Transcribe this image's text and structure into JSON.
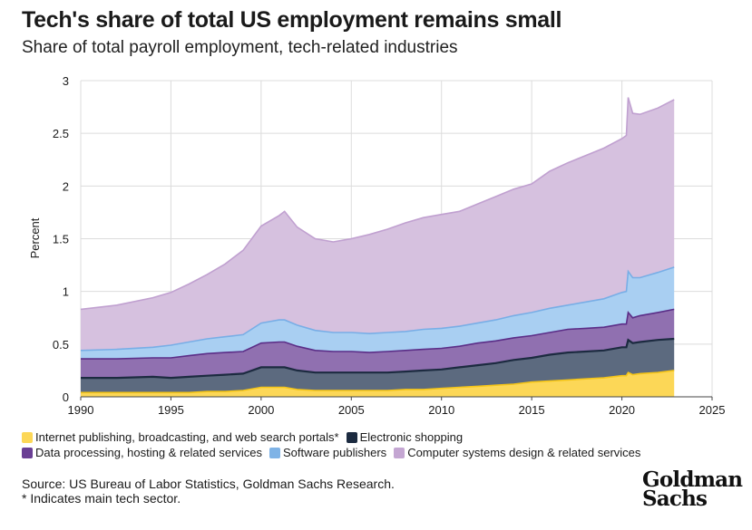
{
  "header": {
    "title": "Tech's share of total US employment remains small",
    "subtitle": "Share of total payroll employment, tech-related industries"
  },
  "chart_data": {
    "type": "area",
    "stacked": true,
    "title": "Tech's share of total US employment remains small",
    "subtitle": "Share of total payroll employment, tech-related industries",
    "xlabel": "",
    "ylabel": "Percent",
    "xlim": [
      1990,
      2025
    ],
    "ylim": [
      0,
      3
    ],
    "x_ticks": [
      "1990",
      "1995",
      "2000",
      "2005",
      "2010",
      "2015",
      "2020",
      "2025"
    ],
    "y_ticks": [
      "0",
      "0.5",
      "1",
      "1.5",
      "2",
      "2.5",
      "3"
    ],
    "grid": true,
    "legend_position": "bottom",
    "x": [
      1990,
      1992,
      1994,
      1995,
      1996,
      1997,
      1998,
      1999,
      2000,
      2001,
      2001.3,
      2002,
      2003,
      2004,
      2005,
      2006,
      2007,
      2008,
      2009,
      2010,
      2011,
      2012,
      2013,
      2014,
      2015,
      2016,
      2017,
      2018,
      2019,
      2020,
      2020.25,
      2020.35,
      2020.6,
      2021,
      2022,
      2022.9
    ],
    "series": [
      {
        "name": "Internet publishing, broadcasting, and web search portals*",
        "color": "#fcd757",
        "values": [
          0.04,
          0.04,
          0.04,
          0.04,
          0.04,
          0.05,
          0.05,
          0.06,
          0.09,
          0.09,
          0.09,
          0.07,
          0.06,
          0.06,
          0.06,
          0.06,
          0.06,
          0.07,
          0.07,
          0.08,
          0.09,
          0.1,
          0.11,
          0.12,
          0.14,
          0.15,
          0.16,
          0.17,
          0.18,
          0.2,
          0.2,
          0.23,
          0.21,
          0.22,
          0.23,
          0.25
        ]
      },
      {
        "name": "Electronic shopping",
        "color": "#5c6a7f",
        "values": [
          0.14,
          0.14,
          0.15,
          0.14,
          0.15,
          0.15,
          0.16,
          0.16,
          0.19,
          0.19,
          0.19,
          0.18,
          0.17,
          0.17,
          0.17,
          0.17,
          0.17,
          0.17,
          0.18,
          0.18,
          0.19,
          0.2,
          0.21,
          0.23,
          0.23,
          0.25,
          0.26,
          0.26,
          0.26,
          0.27,
          0.27,
          0.31,
          0.3,
          0.3,
          0.31,
          0.3
        ]
      },
      {
        "name": "Data processing, hosting & related services",
        "color": "#9070b0",
        "values": [
          0.18,
          0.18,
          0.18,
          0.19,
          0.2,
          0.21,
          0.21,
          0.21,
          0.23,
          0.24,
          0.24,
          0.23,
          0.21,
          0.2,
          0.2,
          0.19,
          0.2,
          0.2,
          0.2,
          0.2,
          0.2,
          0.21,
          0.21,
          0.21,
          0.21,
          0.21,
          0.22,
          0.22,
          0.22,
          0.22,
          0.22,
          0.26,
          0.24,
          0.25,
          0.26,
          0.28
        ]
      },
      {
        "name": "Software publishers",
        "color": "#a9cff2",
        "values": [
          0.08,
          0.09,
          0.1,
          0.12,
          0.13,
          0.14,
          0.15,
          0.16,
          0.19,
          0.21,
          0.21,
          0.2,
          0.19,
          0.18,
          0.18,
          0.18,
          0.18,
          0.18,
          0.19,
          0.19,
          0.19,
          0.19,
          0.2,
          0.21,
          0.22,
          0.23,
          0.23,
          0.25,
          0.27,
          0.3,
          0.31,
          0.39,
          0.38,
          0.36,
          0.38,
          0.4
        ]
      },
      {
        "name": "Computer systems design & related services",
        "color": "#d6c1df",
        "values": [
          0.39,
          0.42,
          0.47,
          0.5,
          0.55,
          0.61,
          0.69,
          0.8,
          0.92,
          0.99,
          1.03,
          0.93,
          0.87,
          0.86,
          0.89,
          0.94,
          0.98,
          1.03,
          1.06,
          1.08,
          1.09,
          1.13,
          1.17,
          1.2,
          1.22,
          1.3,
          1.35,
          1.39,
          1.43,
          1.46,
          1.48,
          1.65,
          1.56,
          1.55,
          1.56,
          1.59
        ]
      }
    ]
  },
  "legend": [
    {
      "label": "Internet publishing, broadcasting, and web search portals*",
      "color": "#fcd757"
    },
    {
      "label": "Electronic shopping",
      "color": "#1c2b40"
    },
    {
      "label": "Data processing, hosting & related services",
      "color": "#6a3f94"
    },
    {
      "label": "Software publishers",
      "color": "#7fb3e6"
    },
    {
      "label": "Computer systems design & related services",
      "color": "#c4a6d2"
    }
  ],
  "footer": {
    "source": "Source: US Bureau of Labor Statistics, Goldman Sachs Research.",
    "note": "* Indicates main tech sector.",
    "logo_line1": "Goldman",
    "logo_line2": "Sachs"
  }
}
